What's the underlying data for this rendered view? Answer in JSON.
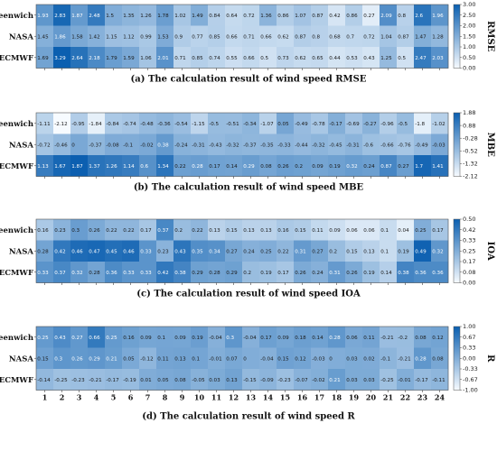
{
  "colors": {
    "low": "#f7fbff",
    "high": "#0b5fb0"
  },
  "chart_data": [
    {
      "type": "heatmap",
      "title": "(a) The calculation result of wind speed RMSE",
      "colorbar_label": "RMSE",
      "rows": [
        "Greenwich",
        "NASA",
        "ECMWF"
      ],
      "columns": [
        "1",
        "2",
        "3",
        "4",
        "5",
        "6",
        "7",
        "8",
        "9",
        "10",
        "11",
        "12",
        "13",
        "14",
        "15",
        "16",
        "17",
        "18",
        "19",
        "20",
        "21",
        "22",
        "23",
        "24"
      ],
      "range": [
        0,
        3
      ],
      "colorbar_ticks": [
        "3.00",
        "2.50",
        "2.00",
        "1.50",
        "1.00",
        "0.50",
        "0.00"
      ],
      "values": [
        [
          1.93,
          2.83,
          1.87,
          2.48,
          1.5,
          1.35,
          1.26,
          1.78,
          1.02,
          1.49,
          0.84,
          0.64,
          0.72,
          1.36,
          0.86,
          1.07,
          0.87,
          0.42,
          0.86,
          0.27,
          2.09,
          0.8,
          2.6,
          1.96
        ],
        [
          1.45,
          1.86,
          1.58,
          1.42,
          1.15,
          1.12,
          0.99,
          1.53,
          0.9,
          0.77,
          0.85,
          0.66,
          0.71,
          0.66,
          0.62,
          0.87,
          0.8,
          0.68,
          0.7,
          0.72,
          1.04,
          0.87,
          1.47,
          1.28
        ],
        [
          1.69,
          3.29,
          2.64,
          2.18,
          1.79,
          1.59,
          1.06,
          2.01,
          0.71,
          0.85,
          0.74,
          0.55,
          0.66,
          0.5,
          0.73,
          0.62,
          0.65,
          0.44,
          0.53,
          0.43,
          1.25,
          0.5,
          2.47,
          2.03
        ]
      ]
    },
    {
      "type": "heatmap",
      "title": "(b) The calculation result of wind speed MBE",
      "colorbar_label": "MBE",
      "rows": [
        "Greenwich",
        "NASA",
        "ECMWF"
      ],
      "columns": [
        "1",
        "2",
        "3",
        "4",
        "5",
        "6",
        "7",
        "8",
        "9",
        "10",
        "11",
        "12",
        "13",
        "14",
        "15",
        "16",
        "17",
        "18",
        "19",
        "20",
        "21",
        "22",
        "23",
        "24"
      ],
      "range": [
        -2.12,
        1.88
      ],
      "colorbar_ticks": [
        "1.88",
        "0.88",
        "-0.28",
        "-0.52",
        "-1.32",
        "-2.12"
      ],
      "values": [
        [
          -1.11,
          -2.12,
          -0.95,
          -1.84,
          -0.84,
          -0.74,
          -0.48,
          -0.36,
          -0.54,
          -1.15,
          -0.5,
          -0.51,
          -0.34,
          -1.07,
          0.05,
          -0.49,
          -0.78,
          -0.17,
          -0.69,
          -0.27,
          -0.96,
          -0.5,
          -1.8,
          -1.02
        ],
        [
          -0.72,
          -0.46,
          0,
          -0.37,
          -0.08,
          -0.1,
          -0.02,
          0.38,
          -0.24,
          -0.31,
          -0.43,
          -0.32,
          -0.37,
          -0.35,
          -0.33,
          -0.44,
          -0.32,
          -0.45,
          -0.31,
          -0.6,
          -0.66,
          -0.76,
          -0.49,
          -0.03
        ],
        [
          1.13,
          1.67,
          1.87,
          1.37,
          1.26,
          1.14,
          0.6,
          1.34,
          0.22,
          0.28,
          0.17,
          0.14,
          0.29,
          0.08,
          0.26,
          0.2,
          0.09,
          0.19,
          0.32,
          0.24,
          0.87,
          0.27,
          1.7,
          1.41
        ]
      ]
    },
    {
      "type": "heatmap",
      "title": "(c) The calculation result of wind speed IOA",
      "colorbar_label": "IOA",
      "rows": [
        "Greenwich",
        "NASA",
        "ECMWF"
      ],
      "columns": [
        "1",
        "2",
        "3",
        "4",
        "5",
        "6",
        "7",
        "8",
        "9",
        "10",
        "11",
        "12",
        "13",
        "14",
        "15",
        "16",
        "17",
        "18",
        "19",
        "20",
        "21",
        "22",
        "23",
        "24"
      ],
      "range": [
        0,
        0.5
      ],
      "colorbar_ticks": [
        "0.50",
        "0.42",
        "0.33",
        "0.25",
        "0.17",
        "0.08",
        "0.00"
      ],
      "values": [
        [
          0.16,
          0.23,
          0.3,
          0.26,
          0.22,
          0.22,
          0.17,
          0.37,
          0.2,
          0.22,
          0.13,
          0.15,
          0.13,
          0.13,
          0.16,
          0.15,
          0.11,
          0.09,
          0.06,
          0.06,
          0.1,
          0.04,
          0.25,
          0.17
        ],
        [
          0.28,
          0.42,
          0.46,
          0.47,
          0.45,
          0.46,
          0.33,
          0.23,
          0.43,
          0.35,
          0.34,
          0.27,
          0.24,
          0.25,
          0.22,
          0.31,
          0.27,
          0.2,
          0.15,
          0.13,
          0.1,
          0.19,
          0.49,
          0.32
        ],
        [
          0.33,
          0.37,
          0.32,
          0.28,
          0.36,
          0.33,
          0.33,
          0.42,
          0.38,
          0.29,
          0.28,
          0.29,
          0.2,
          0.19,
          0.17,
          0.26,
          0.24,
          0.31,
          0.26,
          0.19,
          0.14,
          0.38,
          0.36,
          0.36
        ]
      ]
    },
    {
      "type": "heatmap",
      "title": "(d) The calculation result of wind speed R",
      "colorbar_label": "R",
      "rows": [
        "Greenwich",
        "NASA",
        "ECMWF"
      ],
      "columns": [
        "1",
        "2",
        "3",
        "4",
        "5",
        "6",
        "7",
        "8",
        "9",
        "10",
        "11",
        "12",
        "13",
        "14",
        "15",
        "16",
        "17",
        "18",
        "19",
        "20",
        "21",
        "22",
        "23",
        "24"
      ],
      "range": [
        -1,
        1
      ],
      "colorbar_ticks": [
        "1.00",
        "0.67",
        "0.33",
        "0.00",
        "-0.33",
        "-0.67",
        "-1.00"
      ],
      "values": [
        [
          0.25,
          0.43,
          0.27,
          0.66,
          0.25,
          0.16,
          0.09,
          0.1,
          0.09,
          0.19,
          -0.04,
          0.3,
          -0.04,
          0.17,
          0.09,
          0.18,
          0.14,
          0.28,
          0.06,
          0.11,
          -0.21,
          -0.2,
          0.08,
          0.12
        ],
        [
          0.15,
          0.3,
          0.26,
          0.29,
          0.21,
          0.05,
          -0.12,
          0.11,
          0.13,
          0.1,
          -0.01,
          0.07,
          0,
          -0.04,
          0.15,
          0.12,
          -0.03,
          0,
          0.03,
          0.02,
          -0.1,
          -0.21,
          0.28,
          0.08
        ],
        [
          -0.14,
          -0.25,
          -0.23,
          -0.21,
          -0.17,
          -0.19,
          0.01,
          0.05,
          0.08,
          -0.05,
          0.03,
          0.13,
          -0.15,
          -0.09,
          -0.23,
          -0.07,
          -0.02,
          0.21,
          0.03,
          0.03,
          -0.25,
          -0.01,
          -0.17,
          -0.11
        ]
      ]
    }
  ]
}
